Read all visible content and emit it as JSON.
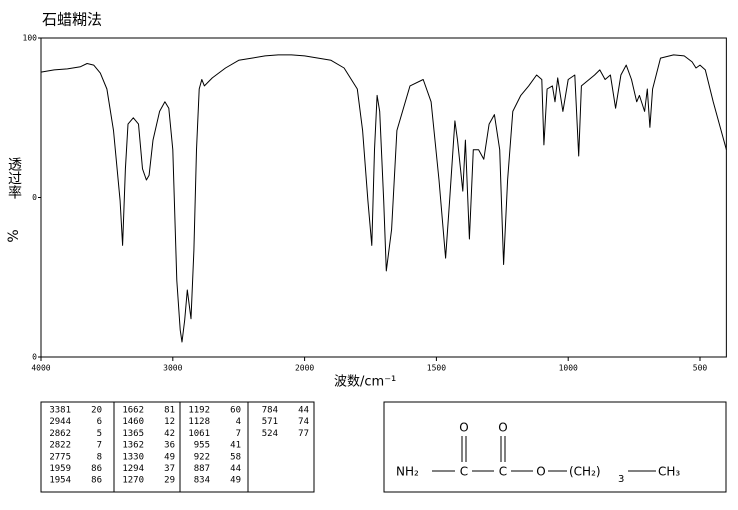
{
  "chart_data": {
    "type": "line",
    "title": "石蜡糊法",
    "x_label": "波数/cm⁻¹",
    "y_label": "透过率",
    "y_label_unit": "%",
    "color": "#000000",
    "xlim": [
      4000,
      400
    ],
    "xticks": [
      4000,
      3000,
      2000,
      1500,
      1000,
      500
    ],
    "ylim": [
      0,
      100
    ],
    "yticks": [
      0,
      {
        "value": 50,
        "label": "0"
      },
      100
    ],
    "x": [
      4000,
      3900,
      3800,
      3700,
      3650,
      3600,
      3550,
      3500,
      3450,
      3400,
      3381,
      3360,
      3340,
      3300,
      3260,
      3230,
      3200,
      3180,
      3150,
      3100,
      3060,
      3030,
      3000,
      2970,
      2944,
      2930,
      2910,
      2890,
      2862,
      2840,
      2820,
      2800,
      2780,
      2760,
      2700,
      2600,
      2500,
      2400,
      2300,
      2200,
      2100,
      2000,
      1900,
      1850,
      1800,
      1780,
      1760,
      1745,
      1735,
      1725,
      1715,
      1700,
      1690,
      1670,
      1650,
      1600,
      1550,
      1520,
      1490,
      1465,
      1450,
      1430,
      1420,
      1400,
      1390,
      1375,
      1360,
      1340,
      1320,
      1300,
      1280,
      1260,
      1245,
      1230,
      1210,
      1180,
      1150,
      1120,
      1100,
      1092,
      1080,
      1060,
      1050,
      1040,
      1020,
      1000,
      975,
      960,
      950,
      900,
      880,
      860,
      840,
      820,
      800,
      780,
      760,
      740,
      730,
      710,
      700,
      690,
      680,
      650,
      600,
      560,
      530,
      515,
      500,
      480,
      450,
      420,
      400
    ],
    "values": [
      89.3,
      90,
      90.3,
      91,
      92,
      91.5,
      89,
      84,
      71,
      49,
      35,
      59,
      73,
      75,
      73,
      59,
      55.5,
      57,
      68,
      77,
      80,
      78,
      65,
      24,
      8.5,
      4.7,
      11.6,
      21,
      12,
      33.5,
      65,
      84,
      87,
      85,
      87.5,
      90.6,
      93,
      93.7,
      94.4,
      94.7,
      94.7,
      94.4,
      93,
      90.6,
      84,
      71,
      49,
      35,
      65,
      82,
      77,
      49,
      27,
      40,
      71,
      85,
      87,
      80,
      55.5,
      31,
      49,
      74,
      68,
      52,
      68,
      37,
      65,
      65,
      62,
      73,
      76,
      65,
      29,
      55.5,
      77,
      82,
      85,
      88.4,
      87,
      66.5,
      84,
      85,
      80,
      87.5,
      77,
      87,
      88.4,
      63,
      85,
      88.4,
      90,
      87,
      88.4,
      78,
      88.4,
      91.5,
      87,
      80,
      82,
      77,
      84,
      72,
      84,
      93.7,
      94.7,
      94.4,
      92.5,
      90.6,
      91.5,
      90,
      80,
      71,
      65
    ]
  },
  "peak_table": {
    "columns": [
      [
        [
          3381,
          20
        ],
        [
          2944,
          6
        ],
        [
          2862,
          5
        ],
        [
          2822,
          7
        ],
        [
          2775,
          8
        ],
        [
          1959,
          86
        ],
        [
          1954,
          86
        ]
      ],
      [
        [
          1662,
          81
        ],
        [
          1460,
          12
        ],
        [
          1365,
          42
        ],
        [
          1362,
          36
        ],
        [
          1330,
          49
        ],
        [
          1294,
          37
        ],
        [
          1270,
          29
        ]
      ],
      [
        [
          1192,
          60
        ],
        [
          1128,
          4
        ],
        [
          1061,
          7
        ],
        [
          955,
          41
        ],
        [
          922,
          58
        ],
        [
          887,
          44
        ],
        [
          834,
          49
        ]
      ],
      [
        [
          784,
          44
        ],
        [
          571,
          74
        ],
        [
          524,
          77
        ]
      ]
    ]
  },
  "structure": {
    "labels": [
      "O",
      "O",
      "NH₂",
      "C",
      "C",
      "O",
      "(CH₂)",
      "3",
      "CH₃"
    ]
  }
}
